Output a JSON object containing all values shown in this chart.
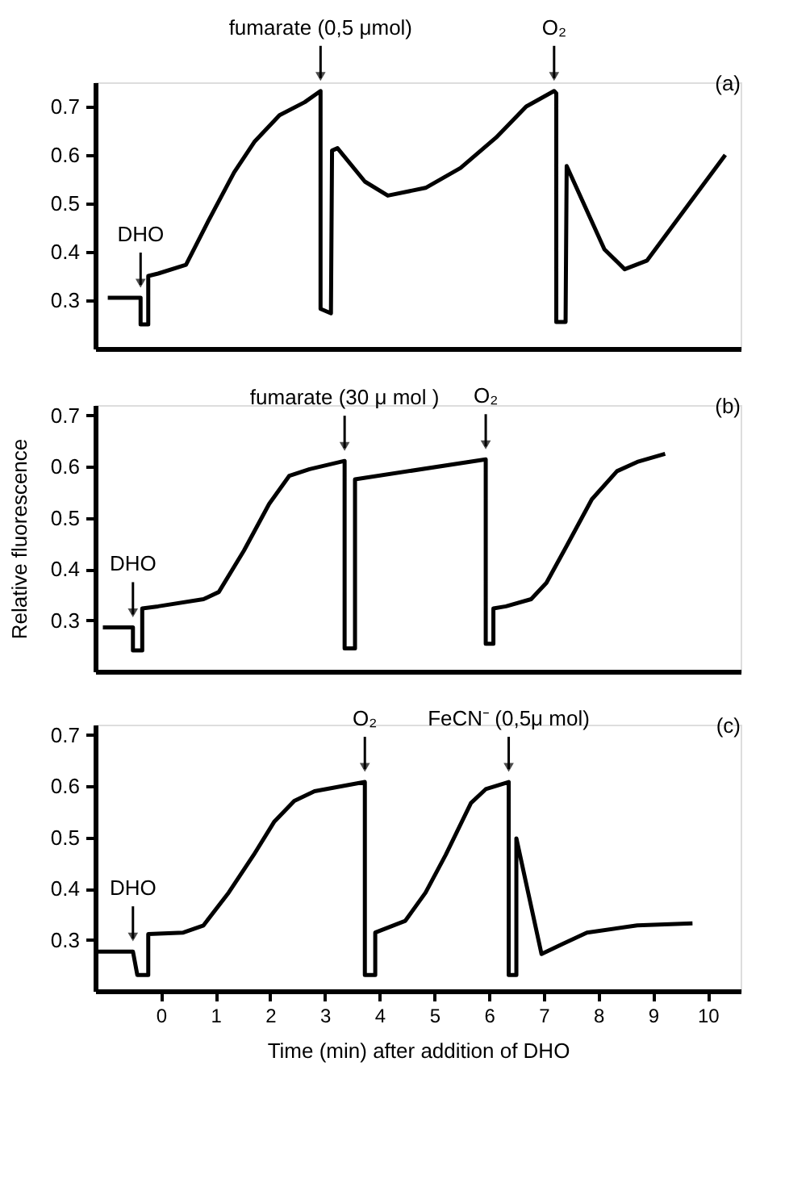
{
  "chart_data": [
    {
      "type": "line",
      "ylim": [
        0.2,
        0.75
      ],
      "yticks": [
        0.3,
        0.4,
        0.5,
        0.6,
        0.7
      ],
      "xlim": [
        -1.2,
        10.6
      ],
      "tick_labels": "y",
      "grid": false,
      "line_style": "solid",
      "marker": "none",
      "series": [
        {
          "color": "#000000",
          "x": [
            -0.97,
            -0.37,
            -0.37,
            -0.23,
            -0.23,
            -0.05,
            0.46,
            0.87,
            1.34,
            1.71,
            2.17,
            2.63,
            2.92,
            2.92,
            3.11,
            3.13,
            3.23,
            3.73,
            4.15,
            4.84,
            5.48,
            6.13,
            6.68,
            7.19,
            7.23,
            7.23,
            7.4,
            7.42,
            8.11,
            8.48,
            8.89,
            9.63,
            10.32
          ],
          "values": [
            0.305,
            0.305,
            0.25,
            0.25,
            0.35,
            0.355,
            0.373,
            0.464,
            0.564,
            0.627,
            0.682,
            0.709,
            0.732,
            0.282,
            0.273,
            0.609,
            0.614,
            0.545,
            0.516,
            0.532,
            0.573,
            0.636,
            0.7,
            0.732,
            0.727,
            0.255,
            0.255,
            0.577,
            0.405,
            0.364,
            0.382,
            0.495,
            0.6
          ]
        }
      ],
      "annotations": [
        {
          "text": "DHO",
          "x": -0.37,
          "y": 0.305
        },
        {
          "text": "fumarate (0,5 μmol)",
          "x": 2.92,
          "y": 0.732
        },
        {
          "text": "O₂",
          "x": 7.19,
          "y": 0.732
        },
        "(a)"
      ]
    },
    {
      "type": "line",
      "ylim": [
        0.2,
        0.72
      ],
      "yticks": [
        0.3,
        0.4,
        0.5,
        0.6,
        0.7
      ],
      "xlim": [
        -1.2,
        10.6
      ],
      "tick_labels": "y",
      "ylabel": "Relative fluorescence",
      "grid": false,
      "line_style": "solid",
      "marker": "none",
      "series": [
        {
          "color": "#000000",
          "x": [
            -1.06,
            -0.51,
            -0.51,
            -0.34,
            -0.34,
            -0.05,
            0.78,
            1.06,
            1.52,
            1.98,
            2.35,
            2.72,
            3.36,
            3.36,
            3.55,
            3.55,
            5.94,
            5.94,
            6.08,
            6.08,
            6.31,
            6.77,
            7.05,
            7.42,
            7.88,
            8.34,
            8.71,
            9.22
          ],
          "values": [
            0.286,
            0.286,
            0.241,
            0.241,
            0.323,
            0.327,
            0.341,
            0.355,
            0.436,
            0.527,
            0.582,
            0.595,
            0.611,
            0.245,
            0.245,
            0.575,
            0.614,
            0.254,
            0.254,
            0.323,
            0.327,
            0.341,
            0.373,
            0.445,
            0.536,
            0.591,
            0.609,
            0.625
          ]
        }
      ],
      "annotations": [
        {
          "text": "DHO",
          "x": -0.51,
          "y": 0.286
        },
        {
          "text": "fumarate (30 μ mol )",
          "x": 3.36,
          "y": 0.611
        },
        {
          "text": "O₂",
          "x": 5.94,
          "y": 0.614
        },
        "(b)"
      ]
    },
    {
      "type": "line",
      "ylim": [
        0.2,
        0.72
      ],
      "yticks": [
        0.3,
        0.4,
        0.5,
        0.6,
        0.7
      ],
      "xlim": [
        -1.2,
        10.6
      ],
      "xticks": [
        0,
        1,
        2,
        3,
        4,
        5,
        6,
        7,
        8,
        9,
        10
      ],
      "xlabel": "Time (min) after addition of DHO",
      "grid": false,
      "line_style": "solid",
      "marker": "none",
      "series": [
        {
          "color": "#000000",
          "x": [
            -1.15,
            -0.51,
            -0.43,
            -0.23,
            -0.23,
            0.41,
            0.78,
            1.24,
            1.7,
            2.07,
            2.44,
            2.81,
            3.73,
            3.73,
            3.92,
            3.92,
            4.47,
            4.84,
            5.21,
            5.67,
            5.94,
            6.36,
            6.36,
            6.5,
            6.5,
            6.96,
            7.33,
            7.79,
            8.71,
            9.72
          ],
          "values": [
            0.277,
            0.277,
            0.231,
            0.231,
            0.311,
            0.314,
            0.328,
            0.392,
            0.466,
            0.53,
            0.571,
            0.59,
            0.608,
            0.231,
            0.231,
            0.314,
            0.337,
            0.392,
            0.466,
            0.567,
            0.594,
            0.608,
            0.231,
            0.231,
            0.498,
            0.272,
            0.291,
            0.314,
            0.328,
            0.332
          ]
        }
      ],
      "annotations": [
        {
          "text": "DHO",
          "x": -0.51,
          "y": 0.277
        },
        {
          "text": "O₂",
          "x": 3.73,
          "y": 0.608
        },
        {
          "text": "FeCN⁻ (0,5μ mol)",
          "x": 6.36,
          "y": 0.608
        },
        "(c)"
      ]
    }
  ]
}
